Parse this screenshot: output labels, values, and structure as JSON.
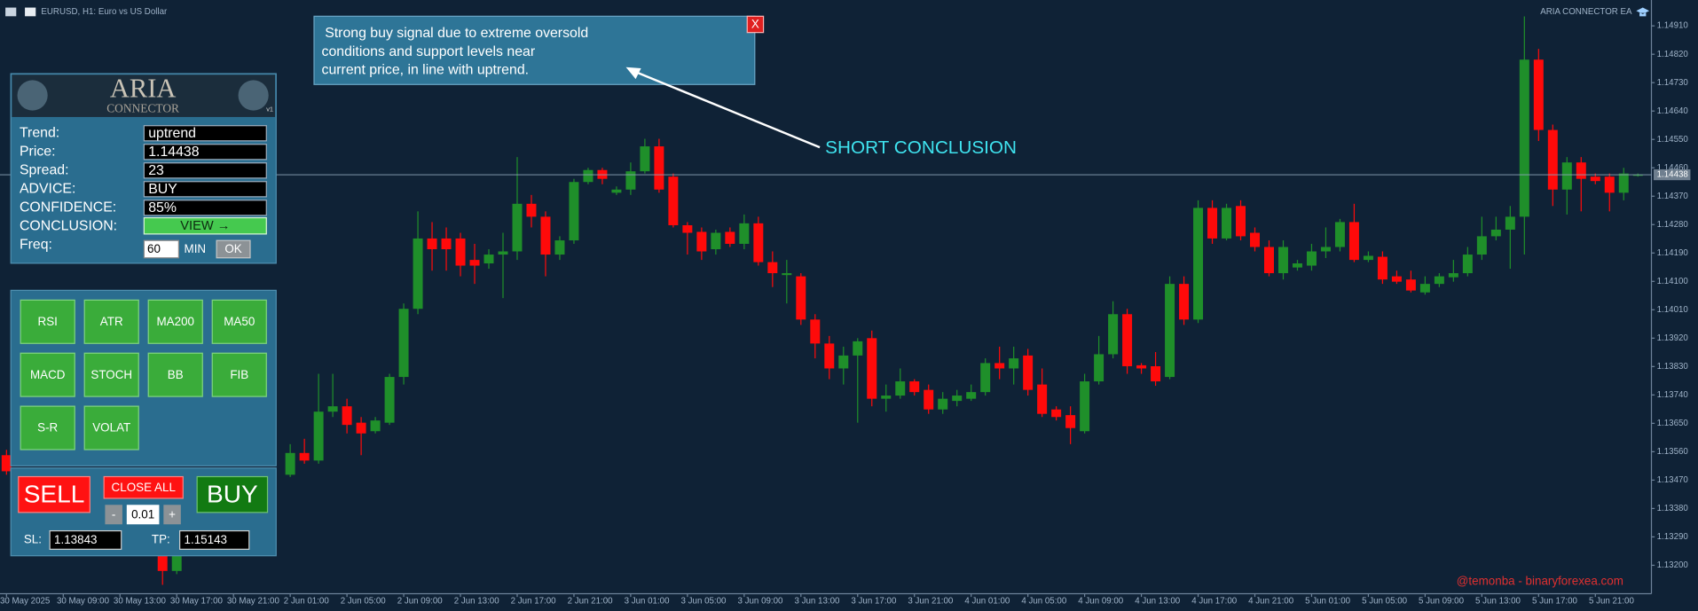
{
  "window": {
    "symbol": "EURUSD, H1:  Euro vs US Dollar",
    "ea_name": "ARIA CONNECTOR EA"
  },
  "chart_data": {
    "type": "candlestick",
    "categories": [
      "30 May 2025",
      null,
      null,
      null,
      "30 May 09:00",
      null,
      null,
      null,
      "30 May 13:00",
      null,
      null,
      null,
      "30 May 17:00",
      null,
      null,
      null,
      "30 May 21:00",
      null,
      null,
      null,
      "2 Jun 01:00",
      null,
      null,
      null,
      "2 Jun 05:00",
      null,
      null,
      null,
      "2 Jun 09:00",
      null,
      null,
      null,
      "2 Jun 13:00",
      null,
      null,
      null,
      "2 Jun 17:00",
      null,
      null,
      null,
      "2 Jun 21:00",
      null,
      null,
      null,
      "3 Jun 01:00",
      null,
      null,
      null,
      "3 Jun 05:00",
      null,
      null,
      null,
      "3 Jun 09:00",
      null,
      null,
      null,
      "3 Jun 13:00",
      null,
      null,
      null,
      "3 Jun 17:00",
      null,
      null,
      null,
      "3 Jun 21:00",
      null,
      null,
      null,
      "4 Jun 01:00",
      null,
      null,
      null,
      "4 Jun 05:00",
      null,
      null,
      null,
      "4 Jun 09:00",
      null,
      null,
      null,
      "4 Jun 13:00",
      null,
      null,
      null,
      "4 Jun 17:00",
      null,
      null,
      null,
      "4 Jun 21:00",
      null,
      null,
      null,
      "5 Jun 01:00",
      null,
      null,
      null,
      "5 Jun 05:00",
      null,
      null,
      null,
      "5 Jun 09:00",
      null,
      null,
      null,
      "5 Jun 13:00",
      null,
      null,
      null,
      "5 Jun 17:00",
      null,
      null,
      null,
      "5 Jun 21:00",
      null,
      null,
      null
    ],
    "open": [
      1.13549,
      null,
      null,
      null,
      null,
      null,
      null,
      null,
      null,
      null,
      null,
      1.1324,
      1.13182,
      null,
      null,
      null,
      null,
      null,
      null,
      null,
      1.13487,
      1.13556,
      1.13532,
      1.13687,
      1.13704,
      1.13652,
      1.13625,
      1.13652,
      1.13797,
      1.14013,
      1.14236,
      1.14236,
      1.14236,
      1.14168,
      1.14157,
      1.14185,
      1.14195,
      1.14346,
      1.14305,
      1.14185,
      1.1423,
      1.14415,
      1.14453,
      1.14381,
      1.14391,
      1.14449,
      1.14528,
      1.14432,
      1.14278,
      1.14257,
      1.14202,
      1.14257,
      1.14219,
      1.14284,
      1.14161,
      1.1412,
      1.14116,
      1.13979,
      1.13903,
      1.13824,
      1.13865,
      1.1392,
      1.13728,
      1.13738,
      1.13783,
      1.13756,
      1.13694,
      1.13721,
      1.13728,
      1.13749,
      1.13841,
      1.13824,
      1.13865,
      1.13773,
      1.13694,
      1.13676,
      1.13625,
      1.13783,
      1.13869,
      1.13996,
      1.13834,
      1.13831,
      1.13797,
      1.14092,
      1.13979,
      1.14333,
      1.14236,
      1.14339,
      1.14254,
      1.14209,
      1.14126,
      1.14144,
      1.1415,
      1.14195,
      1.14209,
      1.14288,
      1.14168,
      1.14178,
      1.14116,
      1.14106,
      1.14065,
      1.14092,
      1.14113,
      1.14126,
      1.14185,
      1.14243,
      1.14264,
      1.14305,
      1.14803,
      1.1458,
      1.14391,
      1.14477,
      1.14432,
      1.14432,
      1.14381,
      1.14436
    ],
    "high": [
      1.13566,
      null,
      null,
      null,
      null,
      null,
      null,
      null,
      null,
      null,
      null,
      1.1324,
      1.1324,
      null,
      null,
      null,
      null,
      null,
      null,
      null,
      1.13584,
      1.13601,
      1.13807,
      1.13807,
      1.13728,
      1.1367,
      1.1367,
      1.13807,
      1.1403,
      1.14322,
      1.14288,
      1.14271,
      1.14254,
      1.14219,
      1.14202,
      1.14254,
      1.14494,
      1.14374,
      1.14322,
      1.14243,
      1.14425,
      1.1446,
      1.1446,
      1.14401,
      1.14477,
      1.14552,
      1.14552,
      1.14442,
      1.14288,
      1.14271,
      1.14264,
      1.14271,
      1.14312,
      1.14305,
      1.14195,
      1.14168,
      1.14126,
      1.13996,
      1.13927,
      1.13893,
      1.1392,
      1.13944,
      1.13773,
      1.13824,
      1.1379,
      1.13773,
      1.13749,
      1.13756,
      1.13773,
      1.13856,
      1.13893,
      1.13893,
      1.13886,
      1.13824,
      1.13704,
      1.13704,
      1.13807,
      1.13927,
      1.14037,
      1.14013,
      1.13841,
      1.13876,
      1.14116,
      1.14116,
      1.14357,
      1.14357,
      1.14346,
      1.14357,
      1.14271,
      1.1423,
      1.1423,
      1.14168,
      1.14219,
      1.14271,
      1.14298,
      1.14346,
      1.14195,
      1.14195,
      1.14134,
      1.14134,
      1.14116,
      1.14126,
      1.14168,
      1.14209,
      1.14305,
      1.14305,
      1.14339,
      1.1494,
      1.14837,
      1.14597,
      1.14494,
      1.14494,
      1.14442,
      1.14442,
      1.1446,
      1.14442
    ],
    "low": [
      1.13487,
      null,
      null,
      null,
      null,
      null,
      null,
      null,
      null,
      null,
      null,
      1.13138,
      1.13172,
      null,
      null,
      null,
      null,
      null,
      null,
      null,
      1.1348,
      1.13522,
      1.13522,
      1.1367,
      1.13618,
      1.13549,
      1.13618,
      1.13645,
      1.13773,
      1.13996,
      1.14134,
      1.14134,
      1.14116,
      1.14092,
      1.1414,
      1.14047,
      1.14168,
      1.14271,
      1.14116,
      1.14168,
      1.14219,
      1.14408,
      1.14408,
      1.14374,
      1.14374,
      1.14442,
      1.14381,
      1.14271,
      1.14185,
      1.14168,
      1.14185,
      1.14209,
      1.14202,
      1.1415,
      1.14082,
      1.1403,
      1.13962,
      1.13856,
      1.1379,
      1.13773,
      1.13652,
      1.13704,
      1.13687,
      1.13728,
      1.13738,
      1.1368,
      1.1368,
      1.13704,
      1.13721,
      1.13738,
      1.1379,
      1.13773,
      1.13738,
      1.1367,
      1.13659,
      1.13584,
      1.13618,
      1.13773,
      1.13856,
      1.13807,
      1.13807,
      1.13769,
      1.1379,
      1.13962,
      1.13968,
      1.14219,
      1.1423,
      1.1423,
      1.14195,
      1.14116,
      1.14106,
      1.14134,
      1.14134,
      1.14174,
      1.14195,
      1.14161,
      1.14161,
      1.14092,
      1.14092,
      1.14065,
      1.14058,
      1.14082,
      1.14099,
      1.14116,
      1.14168,
      1.1423,
      1.1414,
      1.14185,
      1.14545,
      1.14339,
      1.14312,
      1.14322,
      1.14408,
      1.14322,
      1.14357,
      1.14432
    ],
    "close": [
      1.13498,
      null,
      null,
      null,
      null,
      null,
      null,
      null,
      null,
      null,
      null,
      1.13182,
      1.1323,
      null,
      null,
      null,
      null,
      null,
      null,
      null,
      1.13556,
      1.13532,
      1.13687,
      1.13704,
      1.13645,
      1.13618,
      1.13659,
      1.13797,
      1.14013,
      1.14236,
      1.14202,
      1.14202,
      1.1415,
      1.1415,
      1.14185,
      1.14195,
      1.14346,
      1.14305,
      1.14185,
      1.1423,
      1.14415,
      1.14453,
      1.14425,
      1.14391,
      1.14449,
      1.14528,
      1.14391,
      1.14278,
      1.14254,
      1.14195,
      1.14254,
      1.14219,
      1.14284,
      1.14161,
      1.14126,
      1.14126,
      1.13979,
      1.13903,
      1.13824,
      1.13865,
      1.1391,
      1.13728,
      1.13738,
      1.13783,
      1.13749,
      1.13694,
      1.13728,
      1.13738,
      1.13749,
      1.13841,
      1.13824,
      1.13856,
      1.13756,
      1.1368,
      1.1367,
      1.13635,
      1.13783,
      1.13869,
      1.13996,
      1.13831,
      1.13824,
      1.13783,
      1.14092,
      1.13979,
      1.14333,
      1.14236,
      1.14333,
      1.14243,
      1.14209,
      1.14126,
      1.14209,
      1.14157,
      1.14195,
      1.14209,
      1.14288,
      1.14168,
      1.14181,
      1.14106,
      1.14099,
      1.14071,
      1.14092,
      1.14116,
      1.14126,
      1.14185,
      1.14243,
      1.14264,
      1.14305,
      1.14803,
      1.1458,
      1.14391,
      1.14477,
      1.14425,
      1.14418,
      1.14381,
      1.14442,
      1.14438
    ],
    "up_color": "#1f8f2a",
    "down_color": "#ff0a0a",
    "ylim": [
      1.1311,
      1.14992
    ],
    "yticks": [
      {
        "value": 1.1491,
        "label": "1.14910"
      },
      {
        "value": 1.1482,
        "label": "1.14820"
      },
      {
        "value": 1.1473,
        "label": "1.14730"
      },
      {
        "value": 1.1464,
        "label": "1.14640"
      },
      {
        "value": 1.1455,
        "label": "1.14550"
      },
      {
        "value": 1.1446,
        "label": "1.14460"
      },
      {
        "value": 1.1437,
        "label": "1.14370"
      },
      {
        "value": 1.1428,
        "label": "1.14280"
      },
      {
        "value": 1.1419,
        "label": "1.14190"
      },
      {
        "value": 1.141,
        "label": "1.14100"
      },
      {
        "value": 1.1401,
        "label": "1.14010"
      },
      {
        "value": 1.1392,
        "label": "1.13920"
      },
      {
        "value": 1.1383,
        "label": "1.13830"
      },
      {
        "value": 1.1374,
        "label": "1.13740"
      },
      {
        "value": 1.1365,
        "label": "1.13650"
      },
      {
        "value": 1.1356,
        "label": "1.13560"
      },
      {
        "value": 1.1347,
        "label": "1.13470"
      },
      {
        "value": 1.1338,
        "label": "1.13380"
      },
      {
        "value": 1.1329,
        "label": "1.13290"
      },
      {
        "value": 1.132,
        "label": "1.13200"
      }
    ],
    "current_price": {
      "value": 1.14438,
      "label": "1.14438"
    }
  },
  "panel": {
    "logo": {
      "title": "ARIA",
      "subtitle": "CONNECTOR",
      "version": "v1"
    },
    "info": [
      {
        "label": "Trend:",
        "value": "uptrend"
      },
      {
        "label": "Price:",
        "value": "1.14438"
      },
      {
        "label": "Spread:",
        "value": "23"
      },
      {
        "label": "ADVICE:",
        "value": "BUY"
      },
      {
        "label": "CONFIDENCE:",
        "value": "85%"
      }
    ],
    "conclusion": {
      "label": "CONCLUSION:",
      "button": "VIEW →"
    },
    "freq": {
      "label": "Freq:",
      "value": "60",
      "unit": "MIN",
      "button": "OK"
    }
  },
  "indicators": [
    "RSI",
    "ATR",
    "MA200",
    "MA50",
    "MACD",
    "STOCH",
    "BB",
    "FIB",
    "S-R",
    "VOLAT"
  ],
  "trade": {
    "sell": "SELL",
    "close_all": "CLOSE ALL",
    "buy": "BUY",
    "minus": "-",
    "lot": "0.01",
    "plus": "+",
    "sl_label": "SL:",
    "sl": "1.13843",
    "tp_label": "TP:",
    "tp": "1.15143"
  },
  "popup": {
    "lines": [
      "Strong buy signal due to extreme oversold",
      "conditions and support levels near",
      "current price, in line with uptrend."
    ],
    "close": "X"
  },
  "annotation": "SHORT CONCLUSION",
  "watermark": "@temonba - binaryforexea.com"
}
